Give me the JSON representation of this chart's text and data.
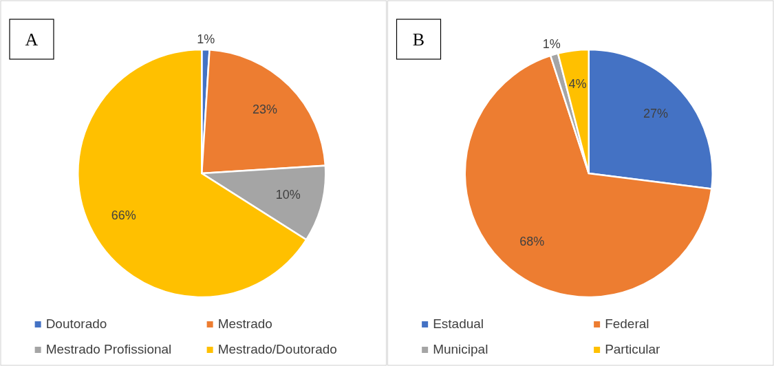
{
  "chart_data": [
    {
      "type": "pie",
      "title": "A",
      "categories": [
        "Doutorado",
        "Mestrado",
        "Mestrado Profissional",
        "Mestrado/Doutorado"
      ],
      "values": [
        1,
        23,
        10,
        66
      ],
      "value_labels": [
        "1%",
        "23%",
        "10%",
        "66%"
      ],
      "colors": [
        "#4472c4",
        "#ed7d31",
        "#a5a5a5",
        "#ffc000"
      ],
      "legend": "bottom"
    },
    {
      "type": "pie",
      "title": "B",
      "categories": [
        "Estadual",
        "Federal",
        "Municipal",
        "Particular"
      ],
      "values": [
        27,
        68,
        1,
        4
      ],
      "value_labels": [
        "27%",
        "68%",
        "1%",
        "4%"
      ],
      "colors": [
        "#4472c4",
        "#ed7d31",
        "#a5a5a5",
        "#ffc000"
      ],
      "legend": "bottom"
    }
  ]
}
